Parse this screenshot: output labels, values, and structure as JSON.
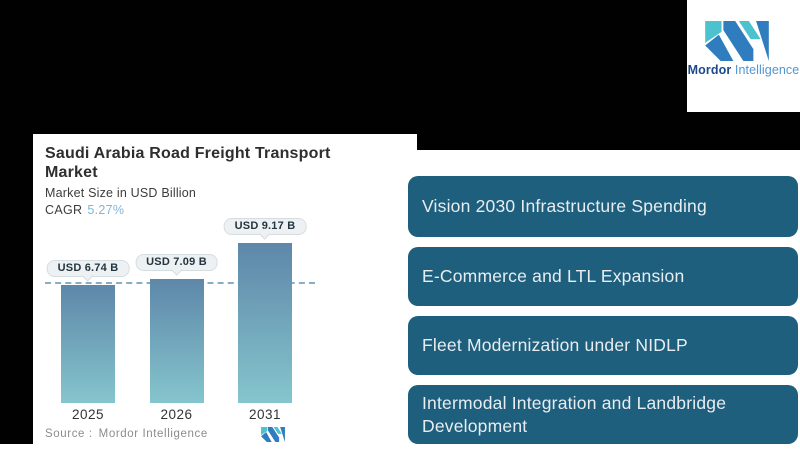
{
  "brand": {
    "name_bold": "Mordor",
    "name_light": "Intelligence"
  },
  "chart_card": {
    "title": "Saudi Arabia Road Freight Transport Market",
    "subtitle": "Market Size in USD Billion",
    "cagr_label": "CAGR",
    "cagr_value": "5.27%",
    "source_label": "Source :",
    "source_value": "Mordor Intelligence"
  },
  "chart_data": {
    "type": "bar",
    "title": "Saudi Arabia Road Freight Transport Market",
    "ylabel": "Market Size in USD Billion",
    "categories": [
      "2025",
      "2026",
      "2031"
    ],
    "values": [
      6.74,
      7.09,
      9.17
    ],
    "bar_labels": [
      "USD 6.74 B",
      "USD 7.09 B",
      "USD 9.17 B"
    ],
    "cagr_pct": 5.27,
    "baseline_dashed_at": 6.74,
    "legend": "none",
    "grid": "off",
    "colors": {
      "bar_top": "#5e87a9",
      "bar_bottom": "#85c5cd",
      "dashed_line": "#87aec4",
      "cagr_value_color": "#82b4d8"
    }
  },
  "drivers": [
    {
      "label": "Vision 2030 Infrastructure Spending"
    },
    {
      "label": "E-Commerce and LTL Expansion"
    },
    {
      "label": "Fleet Modernization under NIDLP"
    },
    {
      "label": "Intermodal Integration and Landbridge Development"
    }
  ],
  "theme": {
    "background_black": "#010101",
    "button_fill": "#1e5f7e",
    "button_text": "#e8edf0",
    "logo_blue": "#2f7dbe",
    "logo_teal": "#4dc2cf"
  }
}
